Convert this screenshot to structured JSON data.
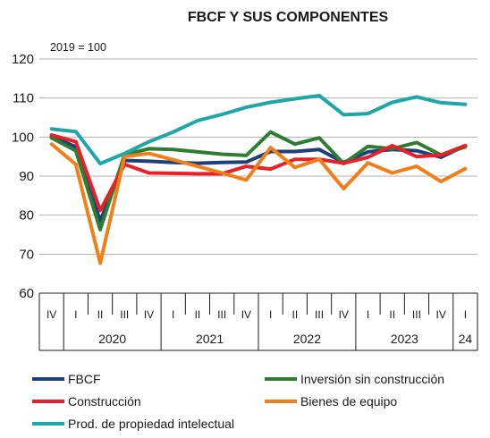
{
  "chart_data": {
    "type": "line",
    "title": "FBCF Y SUS COMPONENTES",
    "unit_label": "2019 = 100",
    "ylim": [
      60,
      120
    ],
    "yticks": [
      60,
      70,
      80,
      90,
      100,
      110,
      120
    ],
    "grid": true,
    "quarters": [
      "IV",
      "I",
      "II",
      "III",
      "IV",
      "I",
      "II",
      "III",
      "IV",
      "I",
      "II",
      "III",
      "IV",
      "I",
      "II",
      "III",
      "IV",
      "I"
    ],
    "years": [
      {
        "label": "2020",
        "span": [
          1,
          4
        ]
      },
      {
        "label": "2021",
        "span": [
          5,
          8
        ]
      },
      {
        "label": "2022",
        "span": [
          9,
          12
        ]
      },
      {
        "label": "2023",
        "span": [
          13,
          16
        ]
      },
      {
        "label": "24",
        "span": [
          17,
          17
        ]
      }
    ],
    "legend_position": "bottom",
    "series": [
      {
        "name": "FBCF",
        "color": "#1f3f7a",
        "values": [
          100.2,
          97.5,
          78.5,
          94.0,
          93.8,
          93.5,
          93.3,
          93.5,
          93.6,
          96.3,
          96.3,
          96.8,
          93.5,
          96.2,
          96.8,
          96.5,
          94.8,
          97.8
        ]
      },
      {
        "name": "Inversión sin construcción",
        "color": "#2e7d32",
        "values": [
          99.8,
          96.5,
          76.3,
          95.5,
          97.0,
          96.8,
          96.2,
          95.6,
          95.3,
          101.3,
          98.2,
          99.8,
          93.2,
          97.6,
          97.0,
          98.6,
          95.4,
          97.5
        ]
      },
      {
        "name": "Construcción",
        "color": "#e8202a",
        "values": [
          100.5,
          98.8,
          81.2,
          93.0,
          90.8,
          90.7,
          90.6,
          90.6,
          92.5,
          91.8,
          94.3,
          94.3,
          93.3,
          94.8,
          97.8,
          95.0,
          95.4,
          97.8
        ]
      },
      {
        "name": "Bienes de equipo",
        "color": "#f07f1a",
        "values": [
          98.2,
          93.0,
          67.7,
          95.0,
          95.8,
          94.2,
          92.5,
          90.8,
          89.0,
          97.3,
          92.2,
          94.3,
          86.8,
          93.4,
          90.8,
          92.5,
          88.6,
          91.9
        ]
      },
      {
        "name": "Prod. de propiedad intelectual",
        "color": "#1fa6a6",
        "values": [
          102.1,
          101.4,
          93.2,
          95.8,
          98.8,
          101.3,
          104.2,
          105.8,
          107.6,
          108.9,
          109.8,
          110.6,
          105.7,
          106.0,
          108.9,
          110.3,
          108.8,
          108.4
        ]
      }
    ]
  }
}
